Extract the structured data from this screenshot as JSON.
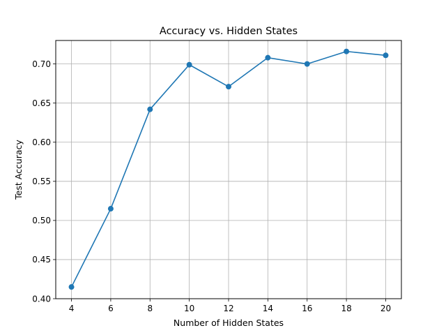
{
  "chart_data": {
    "type": "line",
    "title": "Accuracy vs. Hidden States",
    "xlabel": "Number of Hidden States",
    "ylabel": "Test Accuracy",
    "x": [
      4,
      6,
      8,
      10,
      12,
      14,
      16,
      18,
      20
    ],
    "series": [
      {
        "values": [
          0.415,
          0.515,
          0.642,
          0.699,
          0.671,
          0.708,
          0.7,
          0.716,
          0.711
        ],
        "color": "#1f77b4",
        "marker": "circle"
      }
    ],
    "xticks": [
      4,
      6,
      8,
      10,
      12,
      14,
      16,
      18,
      20
    ],
    "xtick_labels": [
      "4",
      "6",
      "8",
      "10",
      "12",
      "14",
      "16",
      "18",
      "20"
    ],
    "yticks": [
      0.4,
      0.45,
      0.5,
      0.55,
      0.6,
      0.65,
      0.7
    ],
    "ytick_labels": [
      "0.40",
      "0.45",
      "0.50",
      "0.55",
      "0.60",
      "0.65",
      "0.70"
    ],
    "xlim": [
      3.2,
      20.8
    ],
    "ylim": [
      0.4,
      0.73
    ],
    "grid": true,
    "grid_color": "#b0b0b0",
    "legend": "none"
  }
}
